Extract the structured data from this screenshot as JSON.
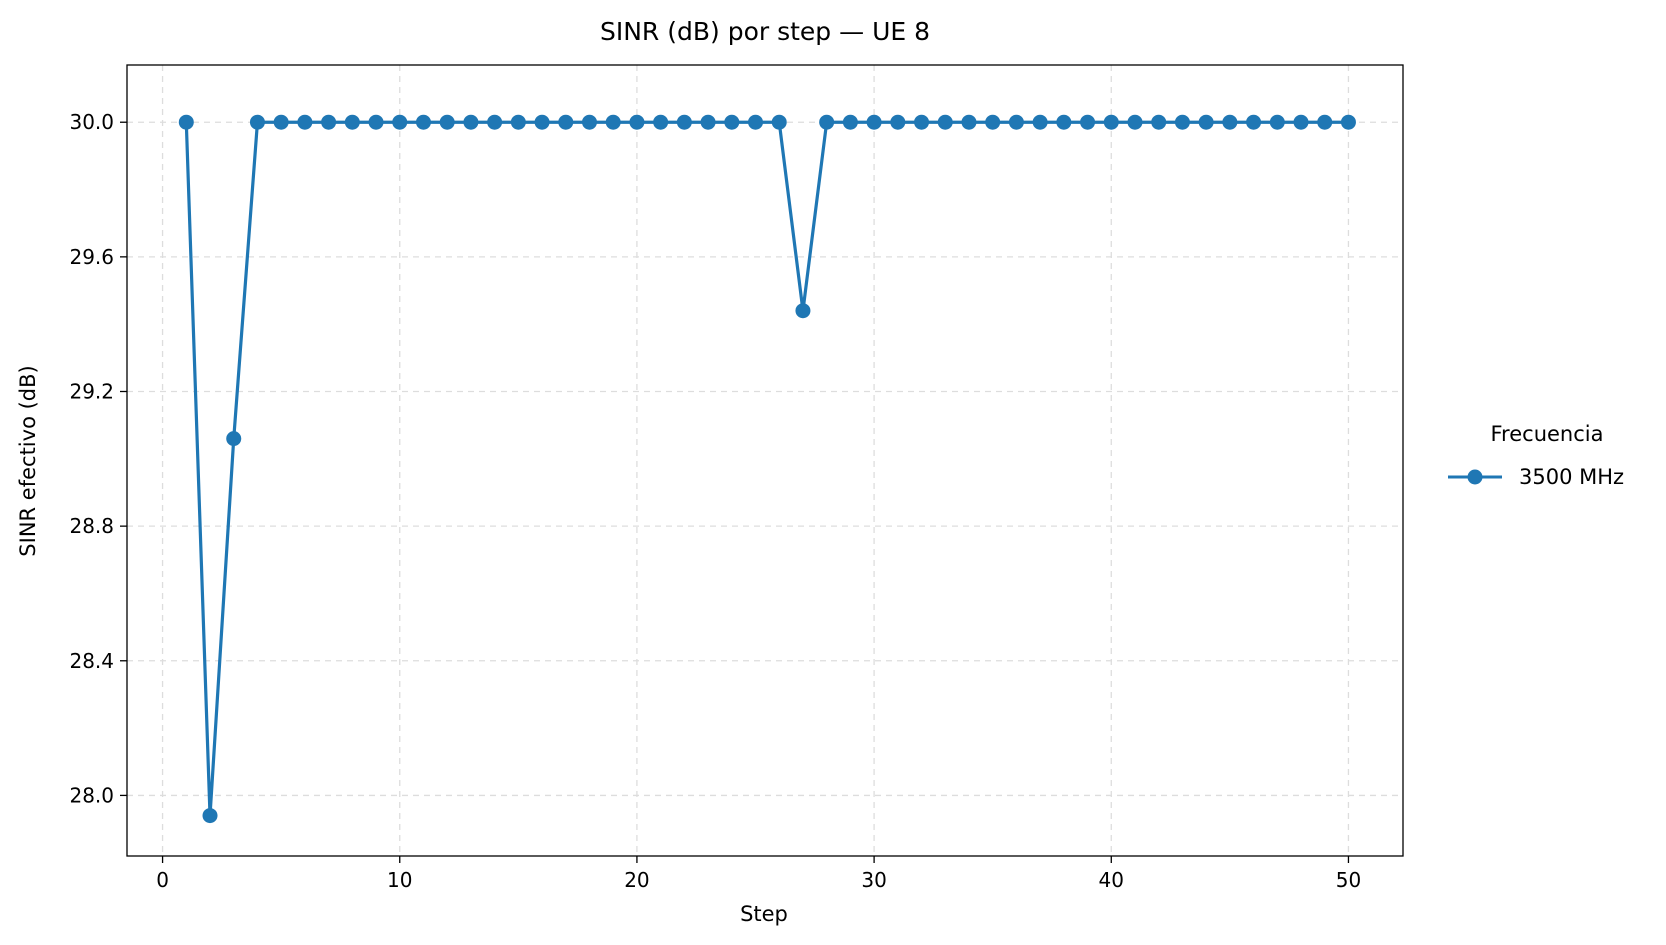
{
  "chart_data": {
    "type": "line",
    "title": "SINR (dB) por step — UE 8",
    "xlabel": "Step",
    "ylabel": "SINR efectivo (dB)",
    "xlim": [
      -1.5,
      52.3
    ],
    "ylim": [
      27.82,
      30.17
    ],
    "xticks": [
      0,
      10,
      20,
      30,
      40,
      50
    ],
    "xtick_labels": [
      "0",
      "10",
      "20",
      "30",
      "40",
      "50"
    ],
    "yticks": [
      28.0,
      28.4,
      28.8,
      29.2,
      29.6,
      30.0
    ],
    "ytick_labels": [
      "28.0",
      "28.4",
      "28.8",
      "29.2",
      "29.6",
      "30.0"
    ],
    "grid": true,
    "legend": {
      "title": "Frecuencia",
      "placement": "outside-right"
    },
    "series": [
      {
        "name": "3500 MHz",
        "color": "#1f77b4",
        "marker": "circle",
        "x": [
          1,
          2,
          3,
          4,
          5,
          6,
          7,
          8,
          9,
          10,
          11,
          12,
          13,
          14,
          15,
          16,
          17,
          18,
          19,
          20,
          21,
          22,
          23,
          24,
          25,
          26,
          27,
          28,
          29,
          30,
          31,
          32,
          33,
          34,
          35,
          36,
          37,
          38,
          39,
          40,
          41,
          42,
          43,
          44,
          45,
          46,
          47,
          48,
          49,
          50
        ],
        "y": [
          30.0,
          27.94,
          29.06,
          30.0,
          30.0,
          30.0,
          30.0,
          30.0,
          30.0,
          30.0,
          30.0,
          30.0,
          30.0,
          30.0,
          30.0,
          30.0,
          30.0,
          30.0,
          30.0,
          30.0,
          30.0,
          30.0,
          30.0,
          30.0,
          30.0,
          30.0,
          29.44,
          30.0,
          30.0,
          30.0,
          30.0,
          30.0,
          30.0,
          30.0,
          30.0,
          30.0,
          30.0,
          30.0,
          30.0,
          30.0,
          30.0,
          30.0,
          30.0,
          30.0,
          30.0,
          30.0,
          30.0,
          30.0,
          30.0,
          30.0
        ]
      }
    ]
  }
}
